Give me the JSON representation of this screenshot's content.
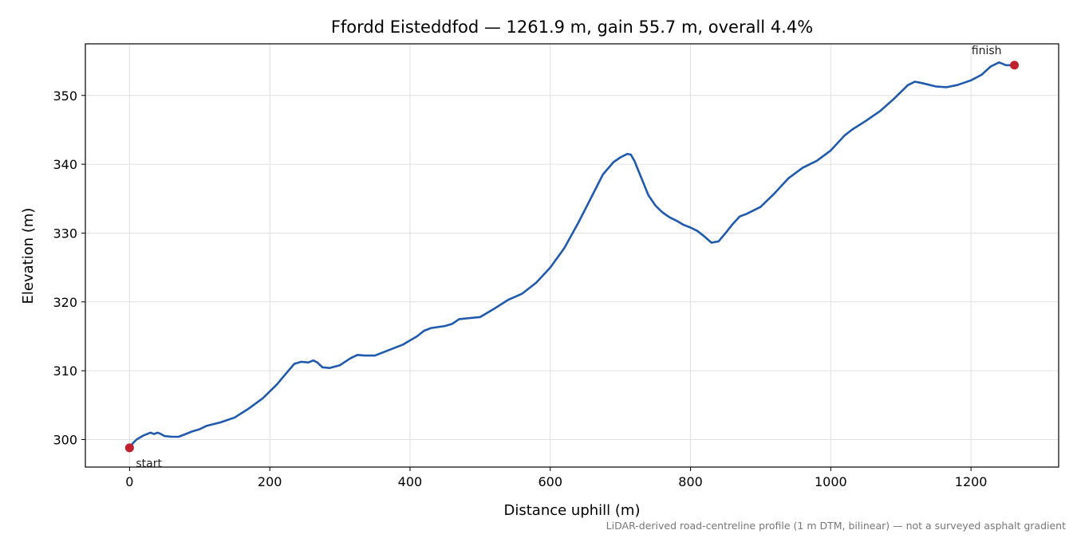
{
  "chart_data": {
    "type": "line",
    "title": "Ffordd Eisteddfod — 1261.9 m, gain 55.7 m, overall 4.4%",
    "xlabel": "Distance uphill (m)",
    "ylabel": "Elevation (m)",
    "caption": "LiDAR-derived road-centreline profile (1 m DTM, bilinear) — not a surveyed asphalt gradient",
    "xlim": [
      -63,
      1325
    ],
    "ylim": [
      296,
      357.5
    ],
    "xticks": [
      0,
      200,
      400,
      600,
      800,
      1000,
      1200
    ],
    "yticks": [
      300,
      310,
      320,
      330,
      340,
      350
    ],
    "grid": true,
    "colors": {
      "line": "#1f5aad",
      "markers": "#c0202e",
      "grid": "#e0e0e0"
    },
    "series": [
      {
        "x": [
          0,
          5,
          10,
          20,
          30,
          35,
          40,
          45,
          50,
          60,
          70,
          80,
          90,
          100,
          110,
          130,
          150,
          170,
          190,
          210,
          225,
          235,
          245,
          255,
          262,
          268,
          275,
          285,
          300,
          315,
          325,
          335,
          350,
          370,
          390,
          410,
          420,
          430,
          450,
          460,
          470,
          480,
          500,
          520,
          540,
          560,
          580,
          600,
          620,
          640,
          660,
          675,
          690,
          700,
          710,
          715,
          720,
          730,
          740,
          750,
          760,
          770,
          780,
          790,
          800,
          810,
          820,
          830,
          840,
          850,
          860,
          870,
          880,
          900,
          920,
          940,
          960,
          980,
          1000,
          1020,
          1030,
          1050,
          1070,
          1090,
          1100,
          1110,
          1120,
          1130,
          1150,
          1165,
          1180,
          1200,
          1215,
          1228,
          1240,
          1250,
          1261.9
        ],
        "y": [
          298.8,
          299.5,
          300.0,
          300.6,
          301.0,
          300.8,
          301.0,
          300.8,
          300.5,
          300.4,
          300.4,
          300.8,
          301.2,
          301.5,
          302.0,
          302.5,
          303.2,
          304.5,
          306.0,
          308.0,
          309.8,
          311.0,
          311.3,
          311.2,
          311.5,
          311.2,
          310.5,
          310.4,
          310.8,
          311.8,
          312.3,
          312.2,
          312.2,
          313.0,
          313.8,
          315.0,
          315.8,
          316.2,
          316.5,
          316.8,
          317.5,
          317.6,
          317.8,
          319.0,
          320.3,
          321.2,
          322.8,
          325.0,
          327.8,
          331.5,
          335.5,
          338.5,
          340.3,
          341.0,
          341.5,
          341.4,
          340.5,
          338.0,
          335.5,
          334.0,
          333.0,
          332.3,
          331.8,
          331.2,
          330.8,
          330.3,
          329.5,
          328.6,
          328.8,
          330.0,
          331.3,
          332.4,
          332.8,
          333.8,
          335.8,
          338.0,
          339.5,
          340.5,
          342.0,
          344.2,
          345.0,
          346.3,
          347.7,
          349.5,
          350.5,
          351.5,
          352.0,
          351.8,
          351.3,
          351.2,
          351.5,
          352.2,
          353.0,
          354.2,
          354.8,
          354.4,
          354.4
        ]
      }
    ],
    "annotations": [
      {
        "text": "start",
        "x": 0,
        "y": 298.8
      },
      {
        "text": "finish",
        "x": 1261.9,
        "y": 354.4
      }
    ]
  }
}
